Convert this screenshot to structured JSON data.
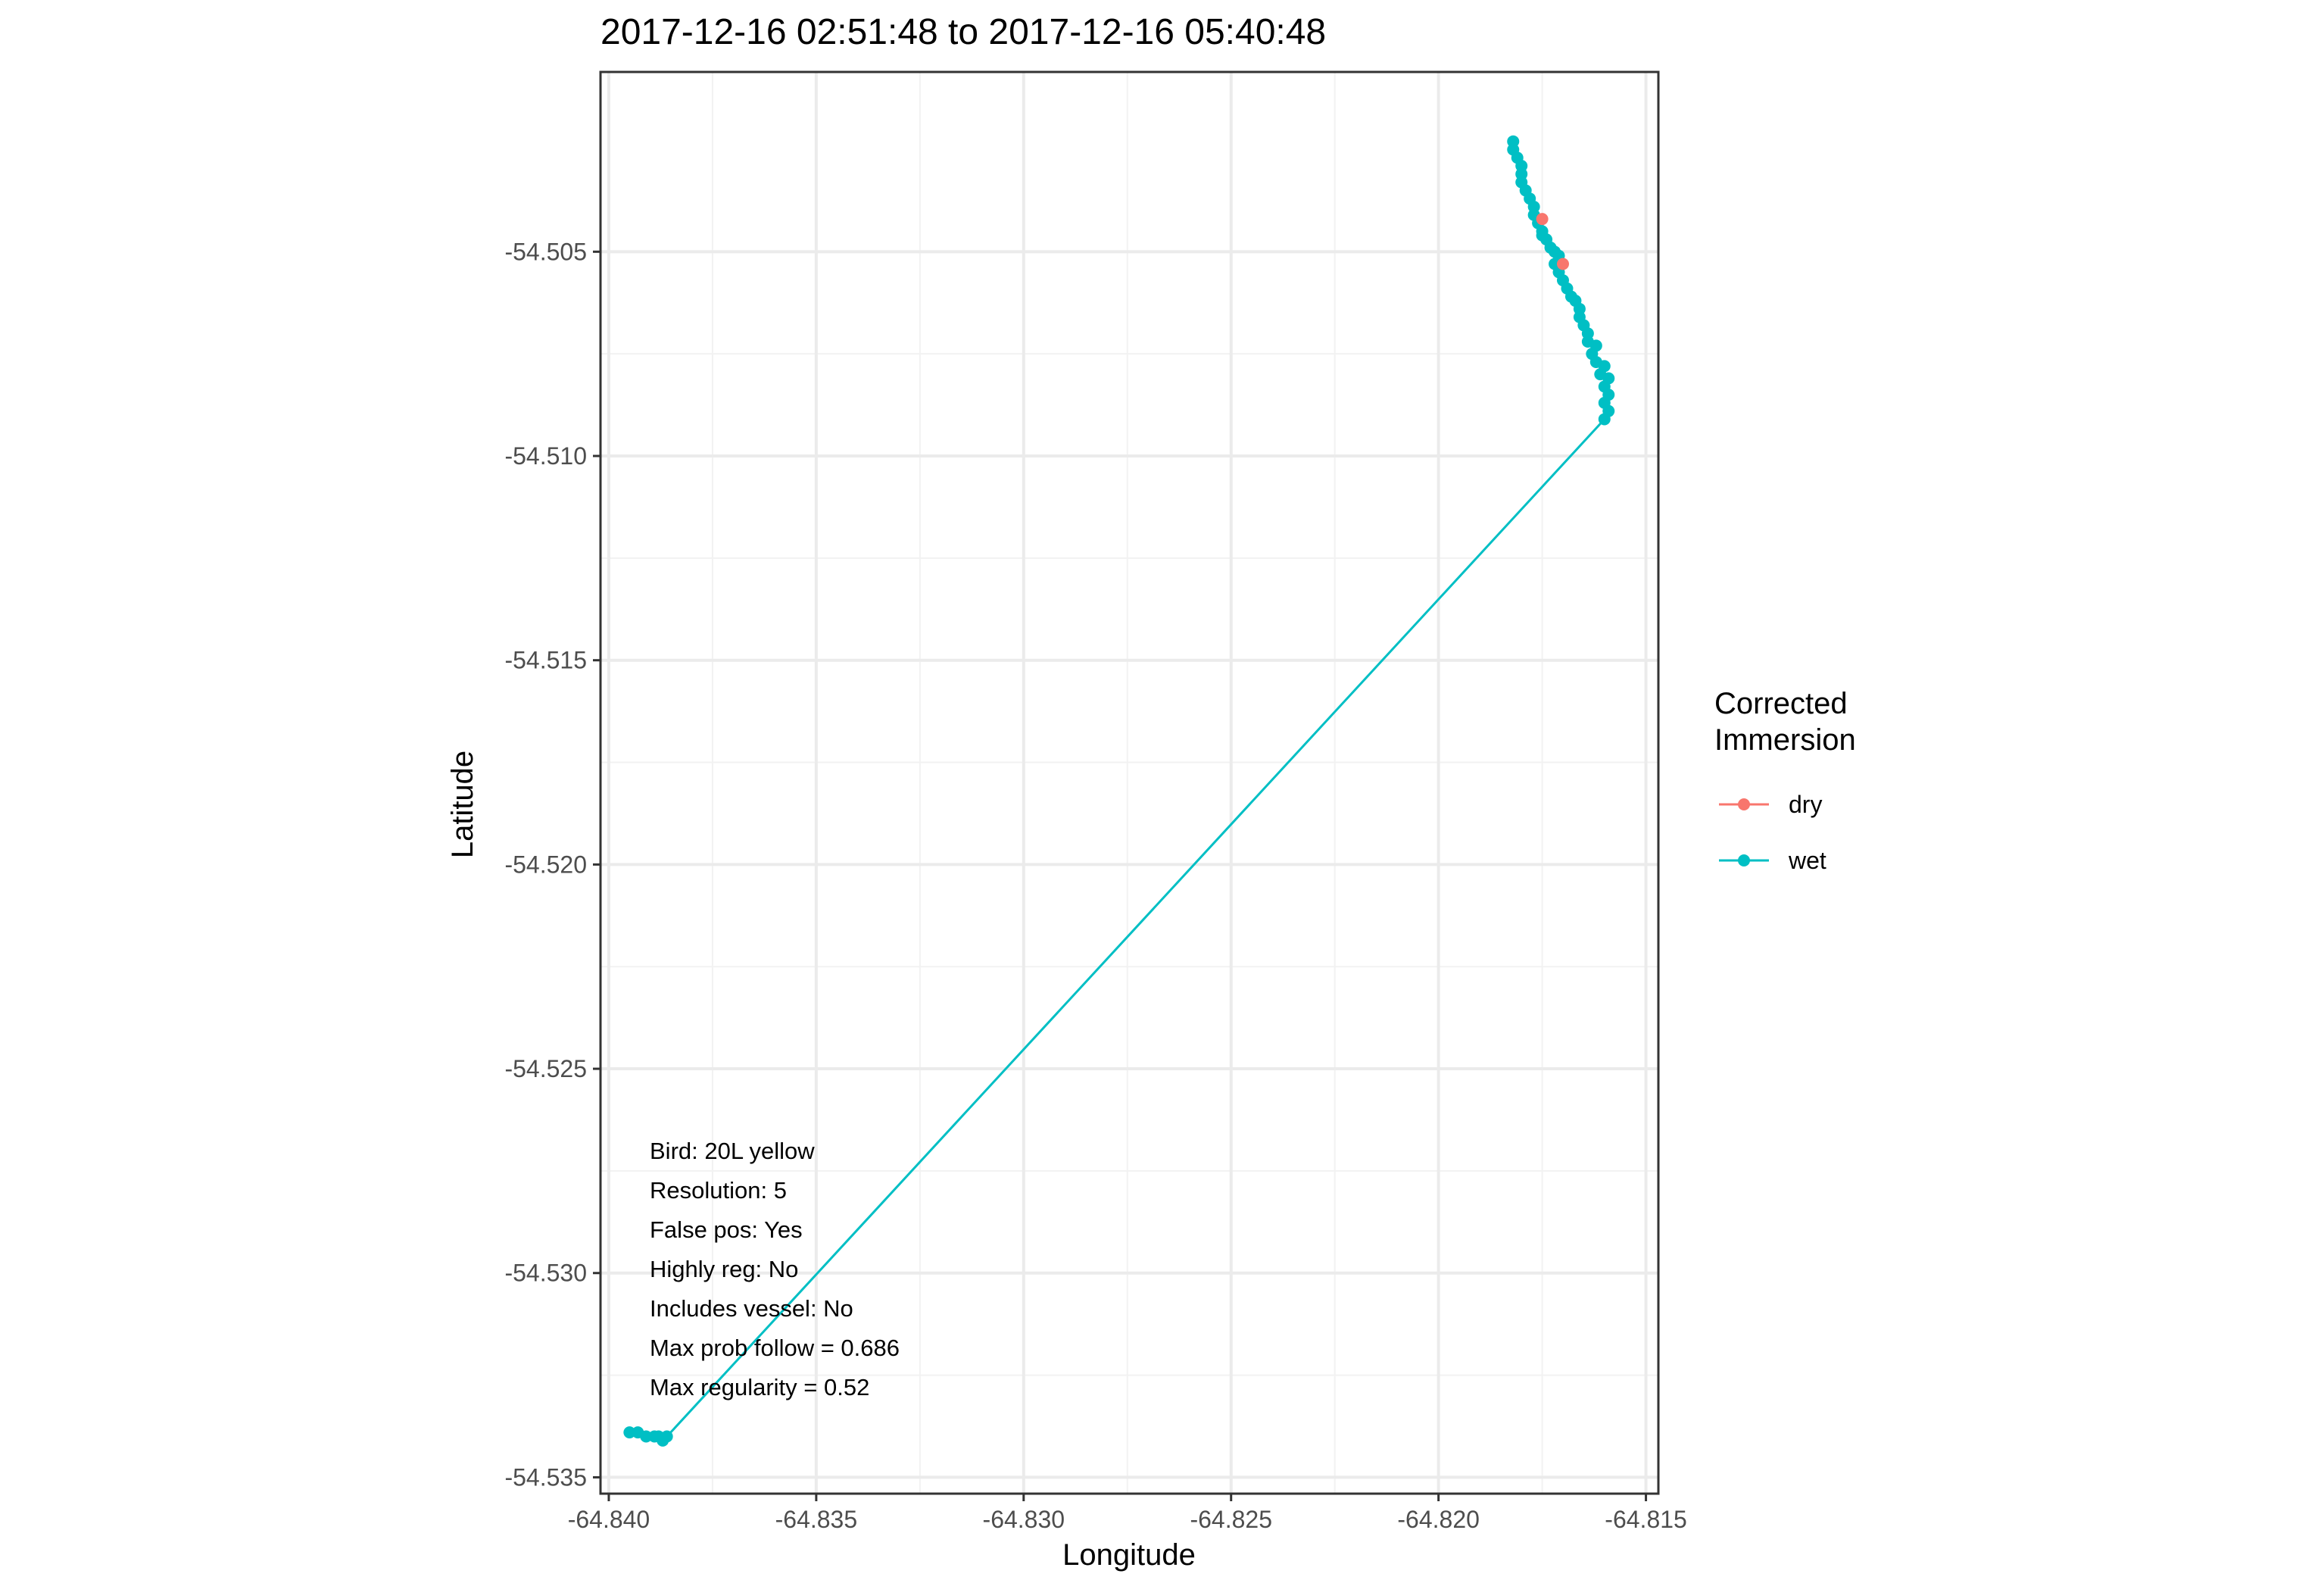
{
  "chart_data": {
    "type": "line",
    "title": "2017-12-16 02:51:48 to 2017-12-16 05:40:48",
    "xlabel": "Longitude",
    "ylabel": "Latitude",
    "xlim": [
      -64.8402,
      -64.8147
    ],
    "ylim": [
      -54.5354,
      -54.5006
    ],
    "x_ticks": [
      -64.84,
      -64.835,
      -64.83,
      -64.825,
      -64.82,
      -64.815
    ],
    "y_ticks": [
      -54.505,
      -54.51,
      -54.515,
      -54.52,
      -54.525,
      -54.53,
      -54.535
    ],
    "x_tick_labels": [
      "-64.840",
      "-64.835",
      "-64.830",
      "-64.825",
      "-64.820",
      "-64.815"
    ],
    "y_tick_labels": [
      "-54.505",
      "-54.510",
      "-54.515",
      "-54.520",
      "-54.525",
      "-54.530",
      "-54.535"
    ],
    "grid": true,
    "legend": {
      "title_lines": [
        "Corrected",
        "Immersion"
      ],
      "position": "right",
      "entries": [
        {
          "label": "dry",
          "color": "#F8766D"
        },
        {
          "label": "wet",
          "color": "#00BFC4"
        }
      ]
    },
    "annotation_lines": [
      "Bird: 20L yellow",
      "Resolution: 5",
      "False pos: Yes",
      "Highly reg: No",
      "Includes vessel: No",
      "Max prob follow = 0.686",
      "Max regularity = 0.52"
    ],
    "series": [
      {
        "name": "wet",
        "color": "#00BFC4",
        "x": [
          -64.8395,
          -64.8393,
          -64.8391,
          -64.8389,
          -64.8388,
          -64.8387,
          -64.8386,
          -64.816,
          -64.8159,
          -64.816,
          -64.8159,
          -64.816,
          -64.8159,
          -64.8161,
          -64.816,
          -64.8162,
          -64.8163,
          -64.8162,
          -64.8164,
          -64.8164,
          -64.8165,
          -64.8166,
          -64.8166,
          -64.8167,
          -64.8168,
          -64.8169,
          -64.817,
          -64.8171,
          -64.8172,
          -64.8171,
          -64.8172,
          -64.8173,
          -64.8174,
          -64.8175,
          -64.8175,
          -64.8176,
          -64.8177,
          -64.8177,
          -64.8178,
          -64.8179,
          -64.818,
          -64.818,
          -64.818,
          -64.8181,
          -64.8182,
          -64.8182
        ],
        "y": [
          -54.5339,
          -54.5339,
          -54.534,
          -54.534,
          -54.534,
          -54.5341,
          -54.534,
          -54.5091,
          -54.5089,
          -54.5087,
          -54.5085,
          -54.5083,
          -54.5081,
          -54.508,
          -54.5078,
          -54.5077,
          -54.5075,
          -54.5073,
          -54.5072,
          -54.507,
          -54.5068,
          -54.5066,
          -54.5064,
          -54.5062,
          -54.5061,
          -54.5059,
          -54.5057,
          -54.5055,
          -54.5053,
          -54.5051,
          -54.505,
          -54.5049,
          -54.5047,
          -54.5046,
          -54.5045,
          -54.5043,
          -54.5041,
          -54.5039,
          -54.5037,
          -54.5035,
          -54.5033,
          -54.5031,
          -54.5029,
          -54.5027,
          -54.5025,
          -54.5023
        ]
      },
      {
        "name": "dry",
        "color": "#F8766D",
        "x": [
          -64.8175,
          -64.817
        ],
        "y": [
          -54.5042,
          -54.5053
        ]
      }
    ]
  }
}
